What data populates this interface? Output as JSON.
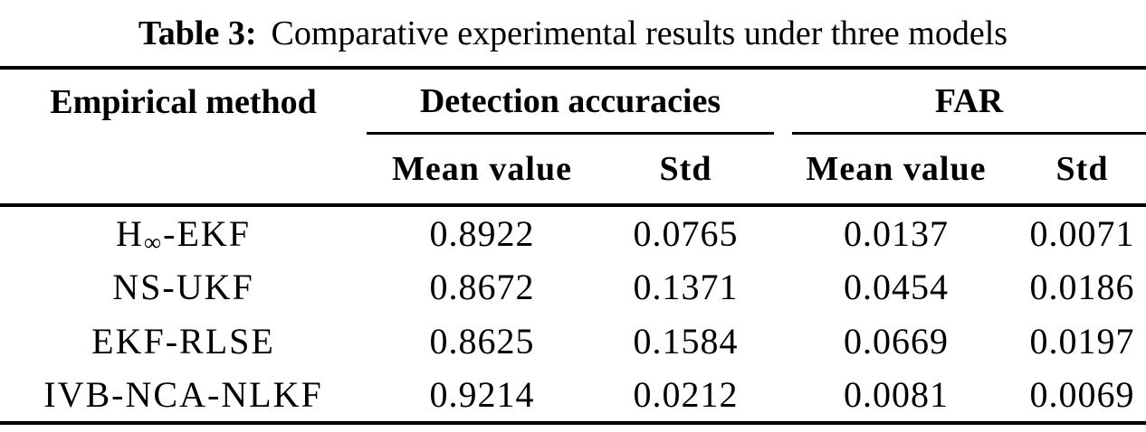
{
  "caption": {
    "label": "Table 3:",
    "text": "Comparative experimental results under three models"
  },
  "table": {
    "col1_header": "Empirical method",
    "groups": [
      {
        "label": "Detection accuracies"
      },
      {
        "label": "FAR"
      }
    ],
    "subheaders": {
      "da_mean": "Mean value",
      "da_std": "Std",
      "far_mean": "Mean value",
      "far_std": "Std"
    },
    "rows": [
      {
        "method_main": "H",
        "method_sub": "∞",
        "method_rest": "-EKF",
        "da_mean": "0.8922",
        "da_std": "0.0765",
        "far_mean": "0.0137",
        "far_std": "0.0071"
      },
      {
        "method_main": "NS-UKF",
        "method_sub": "",
        "method_rest": "",
        "da_mean": "0.8672",
        "da_std": "0.1371",
        "far_mean": "0.0454",
        "far_std": "0.0186"
      },
      {
        "method_main": "EKF-RLSE",
        "method_sub": "",
        "method_rest": "",
        "da_mean": "0.8625",
        "da_std": "0.1584",
        "far_mean": "0.0669",
        "far_std": "0.0197"
      },
      {
        "method_main": "IVB-NCA-NLKF",
        "method_sub": "",
        "method_rest": "",
        "da_mean": "0.9214",
        "da_std": "0.0212",
        "far_mean": "0.0081",
        "far_std": "0.0069"
      }
    ]
  },
  "colors": {
    "text": "#000000",
    "background": "#ffffff",
    "rule": "#000000"
  }
}
